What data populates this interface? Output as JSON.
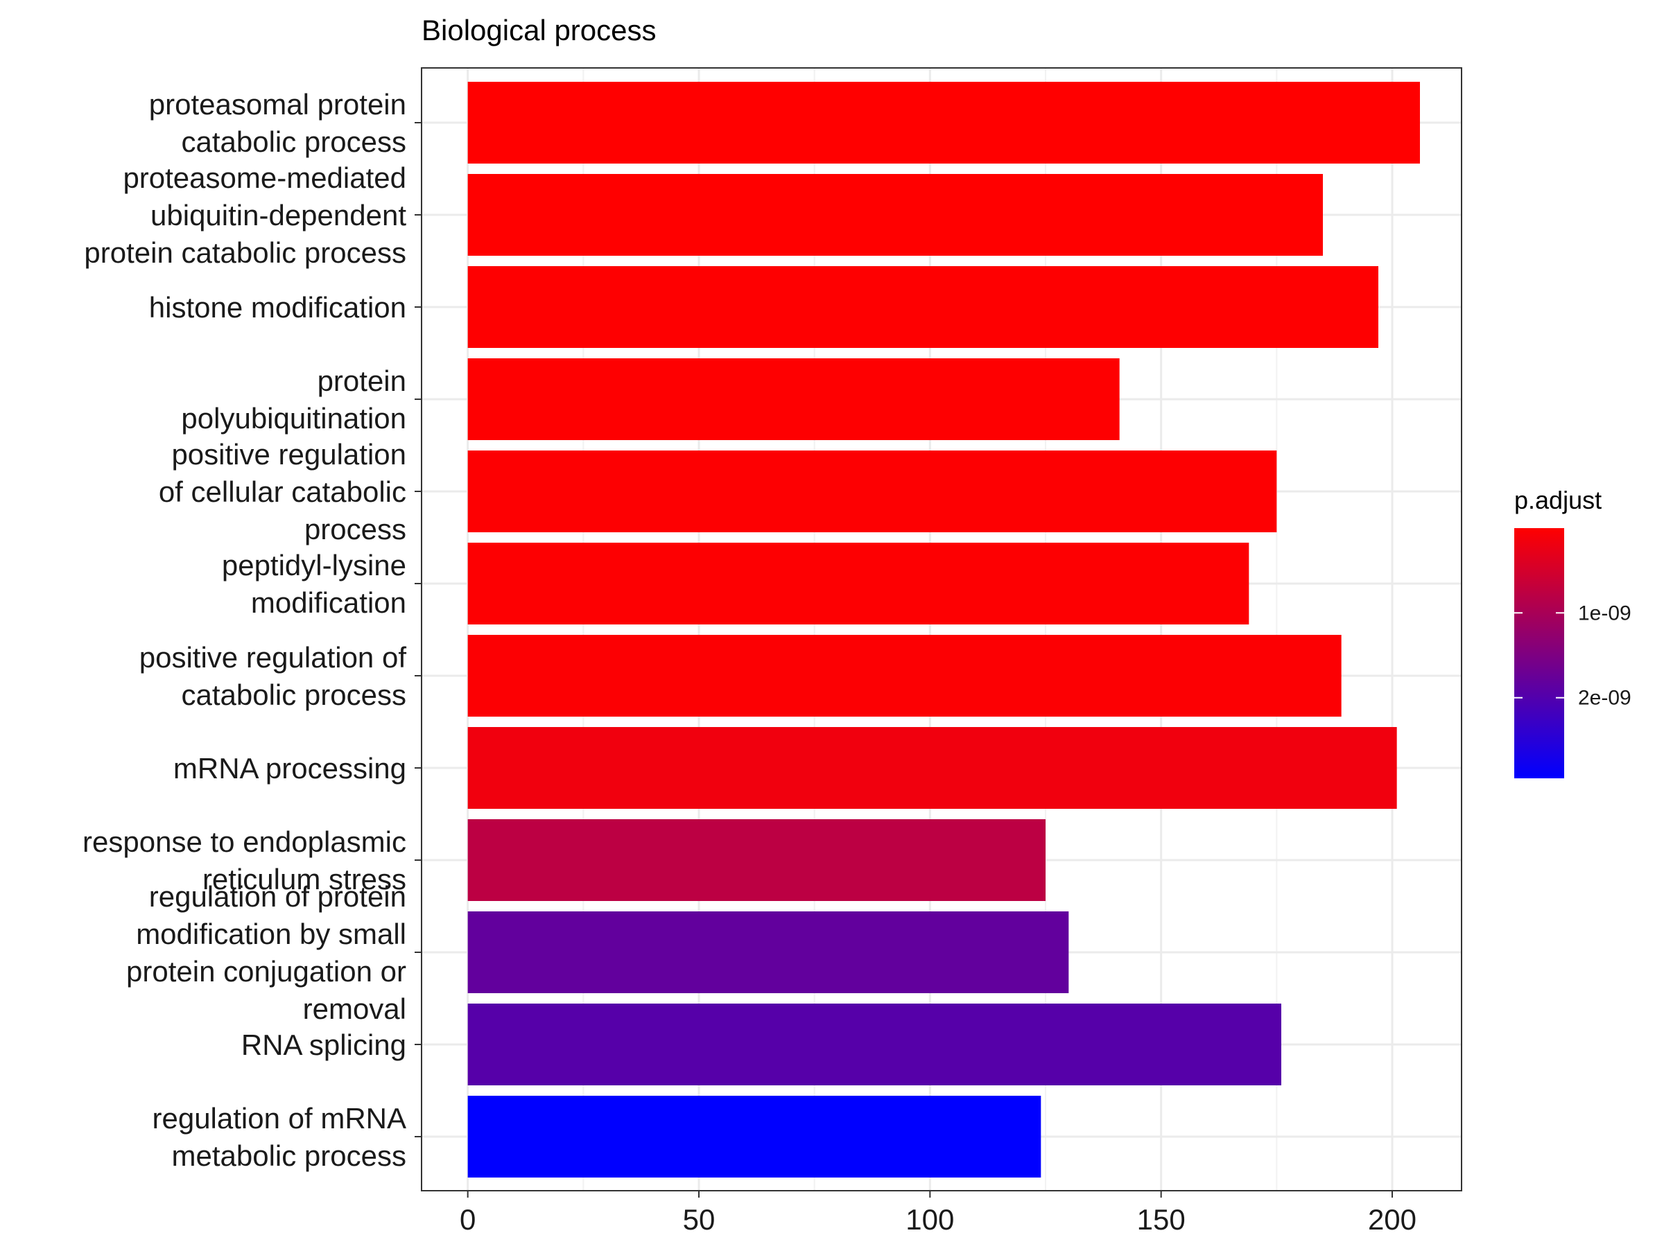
{
  "chart_data": {
    "type": "bar",
    "orientation": "horizontal",
    "title": "Biological process",
    "xlabel": "",
    "ylabel": "",
    "xlim": [
      -10,
      215
    ],
    "xticks": [
      0,
      50,
      100,
      150,
      200
    ],
    "grid": true,
    "legend_position": "right",
    "categories": [
      [
        "proteasomal protein",
        "catabolic process"
      ],
      [
        "proteasome-mediated",
        "ubiquitin-dependent",
        "protein catabolic process"
      ],
      [
        "histone modification"
      ],
      [
        "protein",
        "polyubiquitination"
      ],
      [
        "positive regulation",
        "of cellular catabolic",
        "process"
      ],
      [
        "peptidyl-lysine",
        "modification"
      ],
      [
        "positive regulation of",
        "catabolic process"
      ],
      [
        "mRNA processing"
      ],
      [
        "response to endoplasmic",
        "reticulum stress"
      ],
      [
        "regulation of protein",
        "modification by small",
        "protein conjugation or",
        "removal"
      ],
      [
        "RNA splicing"
      ],
      [
        "regulation of mRNA",
        "metabolic process"
      ]
    ],
    "values": [
      206,
      185,
      197,
      141,
      175,
      169,
      189,
      201,
      125,
      130,
      176,
      124
    ],
    "p_adjust": [
      4e-12,
      4e-12,
      8e-12,
      1.2e-11,
      2e-11,
      2.5e-11,
      3e-11,
      1.6e-10,
      7.8e-10,
      1.82e-09,
      1.95e-09,
      2.95e-09
    ],
    "colorbar": {
      "title": "p.adjust",
      "range": [
        1e-12,
        2.95e-09
      ],
      "ticks": [
        1e-09,
        2e-09
      ],
      "tick_labels": [
        "1e-09",
        "2e-09"
      ],
      "low_color": "#FF0000",
      "high_color": "#0000FF"
    }
  }
}
